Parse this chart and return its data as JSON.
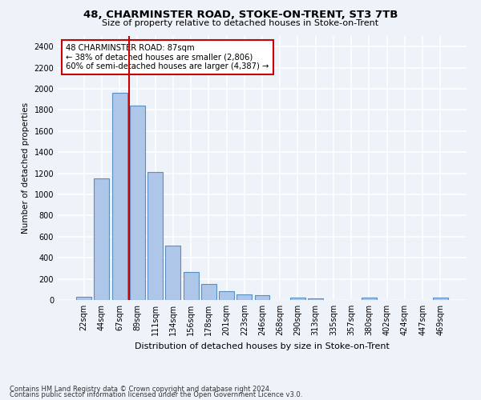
{
  "title": "48, CHARMINSTER ROAD, STOKE-ON-TRENT, ST3 7TB",
  "subtitle": "Size of property relative to detached houses in Stoke-on-Trent",
  "xlabel": "Distribution of detached houses by size in Stoke-on-Trent",
  "ylabel": "Number of detached properties",
  "bin_labels": [
    "22sqm",
    "44sqm",
    "67sqm",
    "89sqm",
    "111sqm",
    "134sqm",
    "156sqm",
    "178sqm",
    "201sqm",
    "223sqm",
    "246sqm",
    "268sqm",
    "290sqm",
    "313sqm",
    "335sqm",
    "357sqm",
    "380sqm",
    "402sqm",
    "424sqm",
    "447sqm",
    "469sqm"
  ],
  "bar_values": [
    30,
    1150,
    1960,
    1840,
    1210,
    515,
    265,
    155,
    80,
    50,
    45,
    0,
    25,
    15,
    0,
    0,
    20,
    0,
    0,
    0,
    20
  ],
  "bar_color": "#aec6e8",
  "bar_edge_color": "#5a8fc0",
  "vline_color": "#cc0000",
  "annotation_text": "48 CHARMINSTER ROAD: 87sqm\n← 38% of detached houses are smaller (2,806)\n60% of semi-detached houses are larger (4,387) →",
  "annotation_box_color": "#ffffff",
  "annotation_box_edge": "#cc0000",
  "ylim": [
    0,
    2500
  ],
  "yticks": [
    0,
    200,
    400,
    600,
    800,
    1000,
    1200,
    1400,
    1600,
    1800,
    2000,
    2200,
    2400
  ],
  "footer_line1": "Contains HM Land Registry data © Crown copyright and database right 2024.",
  "footer_line2": "Contains public sector information licensed under the Open Government Licence v3.0.",
  "background_color": "#eef2f9",
  "grid_color": "#ffffff",
  "fig_width": 6.0,
  "fig_height": 5.0,
  "dpi": 100
}
